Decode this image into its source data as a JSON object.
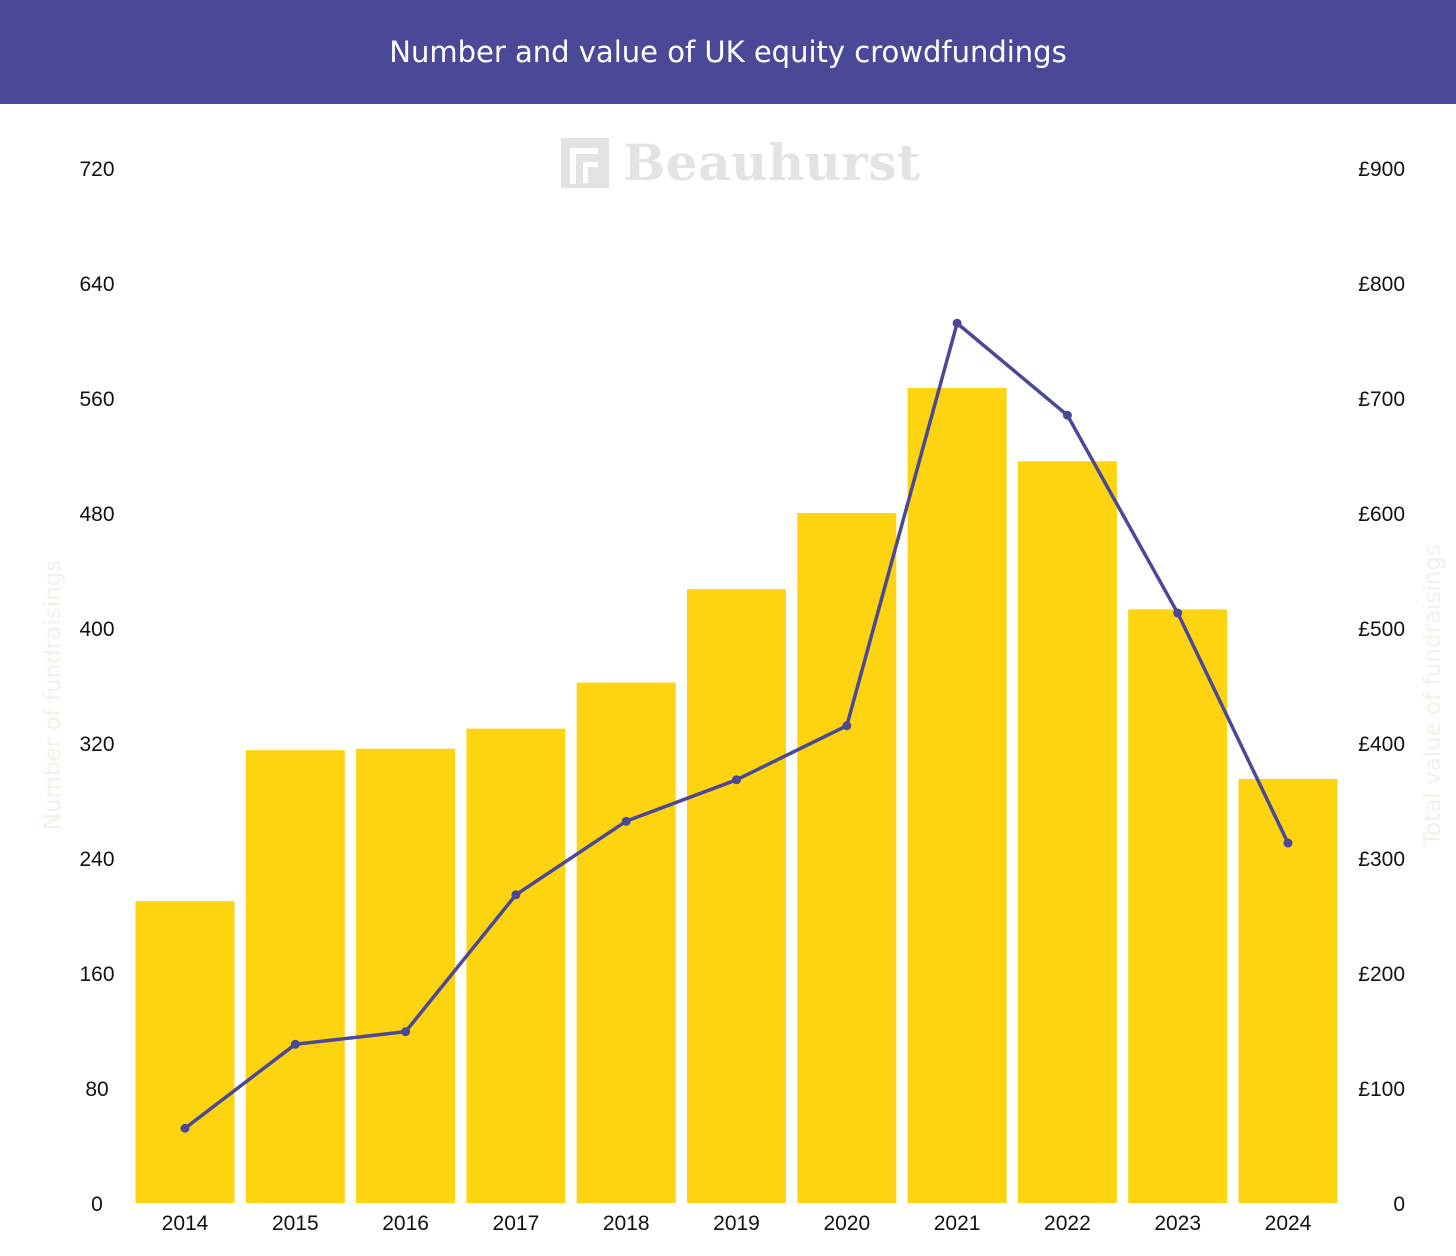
{
  "header": {
    "title": "Number and value of UK equity crowdfundings"
  },
  "watermark": {
    "brand": "Beauhurst",
    "icon": "beauhurst-logo-icon"
  },
  "colors": {
    "header_bg": "#4b4898",
    "bar": "#fdd40f",
    "line": "#4b4898"
  },
  "chart_data": {
    "type": "bar",
    "categories": [
      "2014",
      "2015",
      "2016",
      "2017",
      "2018",
      "2019",
      "2020",
      "2021",
      "2022",
      "2023",
      "2024"
    ],
    "series": [
      {
        "name": "Number of fundraisings",
        "type": "bar",
        "axis": "left",
        "values": [
          210,
          315,
          316,
          330,
          362,
          427,
          480,
          567,
          516,
          413,
          295
        ]
      },
      {
        "name": "Total value of fundraisings",
        "type": "line",
        "axis": "right",
        "values": [
          65,
          138,
          149,
          268,
          332,
          368,
          415,
          765,
          685,
          513,
          313
        ]
      }
    ],
    "y_left": {
      "label": "Number of fundraisings",
      "ticks": [
        "0",
        "80",
        "160",
        "240",
        "320",
        "400",
        "480",
        "560",
        "640",
        "720"
      ],
      "ylim": [
        0,
        720
      ]
    },
    "y_right": {
      "label": "Total value of fundraisings",
      "ticks": [
        "0",
        "£100",
        "£200",
        "£300",
        "£400",
        "£500",
        "£600",
        "£700",
        "£800",
        "£900"
      ],
      "ylim": [
        0,
        900
      ]
    },
    "grid": false,
    "legend": "none"
  }
}
